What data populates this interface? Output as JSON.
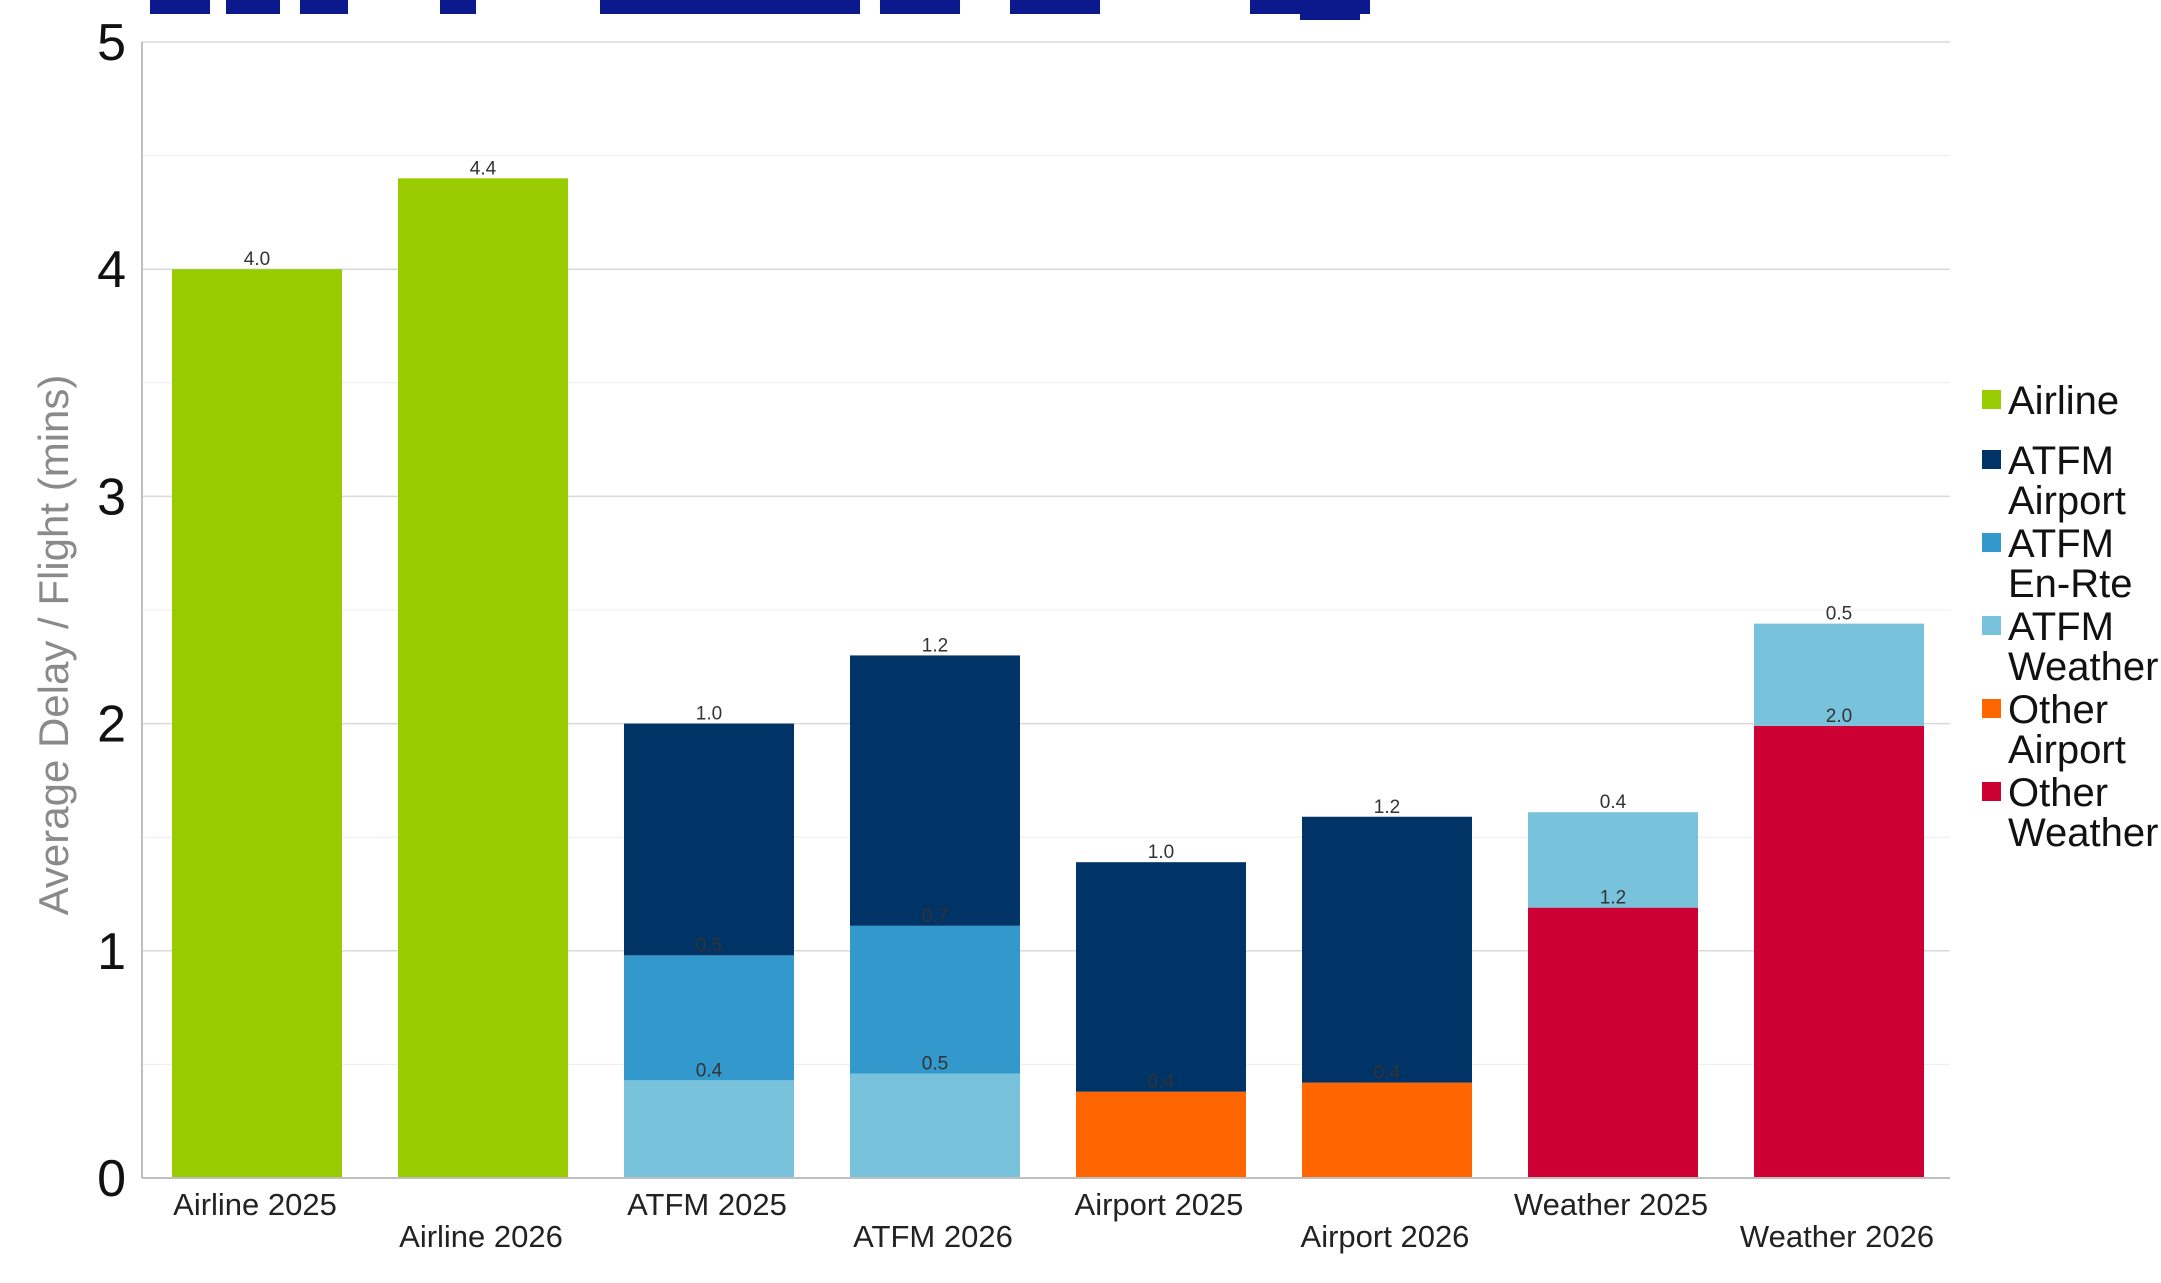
{
  "chart_data": {
    "type": "bar",
    "stacked": true,
    "ylabel": "Average Delay / Flight (mins)",
    "ylim": [
      0,
      5
    ],
    "yticks": [
      0,
      1,
      2,
      3,
      4,
      5
    ],
    "grid": true,
    "legend_position": "right",
    "categories": [
      "Airline 2025",
      "Airline 2026",
      "ATFM 2025",
      "ATFM 2026",
      "Airport 2025",
      "Airport 2026",
      "Weather 2025",
      "Weather 2026"
    ],
    "series": [
      {
        "name": "Airline",
        "color": "#99cc00",
        "values": [
          4.0,
          4.4,
          0,
          0,
          0,
          0,
          0,
          0
        ],
        "labels": [
          "4.0",
          "4.4",
          null,
          null,
          null,
          null,
          null,
          null
        ]
      },
      {
        "name": "ATFM Weather",
        "color": "#78c3db",
        "values": [
          0,
          0,
          0.43,
          0.46,
          0,
          0,
          0,
          0
        ],
        "labels": [
          null,
          null,
          "0.4",
          "0.5",
          null,
          null,
          null,
          null
        ]
      },
      {
        "name": "ATFM En-Rte",
        "color": "#3399cc",
        "values": [
          0,
          0,
          0.55,
          0.65,
          0,
          0,
          0,
          0
        ],
        "labels": [
          null,
          null,
          "0.5",
          "0.7",
          null,
          null,
          null,
          null
        ]
      },
      {
        "name": "Other Airport",
        "color": "#ff6600",
        "values": [
          0,
          0,
          0,
          0,
          0.38,
          0.42,
          0,
          0
        ],
        "labels": [
          null,
          null,
          null,
          null,
          "0.4",
          "0.4",
          null,
          null
        ]
      },
      {
        "name": "ATFM Airport",
        "color": "#003366",
        "values": [
          0,
          0,
          1.02,
          1.19,
          1.01,
          1.17,
          0,
          0
        ],
        "labels": [
          null,
          null,
          "1.0",
          "1.2",
          "1.0",
          "1.2",
          null,
          null
        ]
      },
      {
        "name": "Other Weather",
        "color": "#cc0033",
        "values": [
          0,
          0,
          0,
          0,
          0,
          0,
          1.19,
          1.99
        ],
        "labels": [
          null,
          null,
          null,
          null,
          null,
          null,
          "1.2",
          "2.0"
        ]
      },
      {
        "name": "ATFM Weather (top)",
        "color": "#78c3db",
        "values": [
          0,
          0,
          0,
          0,
          0,
          0,
          0.42,
          0.45
        ],
        "labels": [
          null,
          null,
          null,
          null,
          null,
          null,
          "0.4",
          "0.5"
        ]
      }
    ],
    "legend": [
      {
        "lines": [
          "Airline"
        ],
        "color": "#99cc00"
      },
      {
        "lines": [
          "ATFM",
          "Airport"
        ],
        "color": "#003366"
      },
      {
        "lines": [
          "ATFM",
          "En-Rte"
        ],
        "color": "#3399cc"
      },
      {
        "lines": [
          "ATFM",
          "Weather"
        ],
        "color": "#78c3db"
      },
      {
        "lines": [
          "Other",
          "Airport"
        ],
        "color": "#ff6600"
      },
      {
        "lines": [
          "Other",
          "Weather"
        ],
        "color": "#cc0033"
      }
    ],
    "title_partial": "Sp  p  o          y  y"
  }
}
